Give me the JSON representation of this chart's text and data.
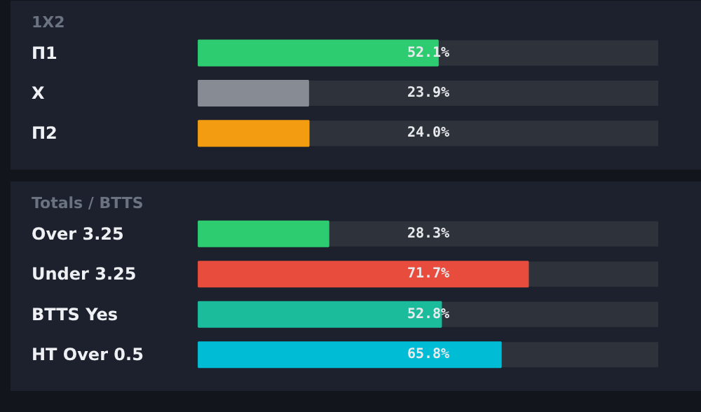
{
  "chart_data": [
    {
      "type": "bar",
      "orientation": "horizontal",
      "title": "1X2",
      "categories": [
        "П1",
        "X",
        "П2"
      ],
      "values": [
        52.1,
        23.9,
        24.0
      ],
      "colors": [
        "#2ecc71",
        "#868b94",
        "#f39c12"
      ],
      "value_labels": [
        "52.1%",
        "23.9%",
        "24.0%"
      ],
      "grid": false
    },
    {
      "type": "bar",
      "orientation": "horizontal",
      "title": "Totals / BTTS",
      "categories": [
        "Over 3.25",
        "Under 3.25",
        "BTTS Yes",
        "HT Over 0.5"
      ],
      "values": [
        28.3,
        71.7,
        52.8,
        65.8
      ],
      "colors": [
        "#2ecc71",
        "#e74c3c",
        "#1abc9c",
        "#00bcd4"
      ],
      "value_labels": [
        "28.3%",
        "71.7%",
        "52.8%",
        "65.8%"
      ],
      "grid": false
    }
  ]
}
